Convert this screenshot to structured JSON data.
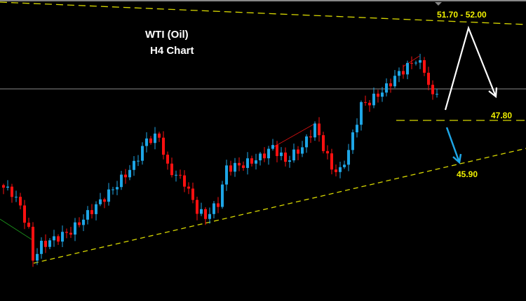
{
  "chart_data": {
    "type": "candlestick",
    "title": "WTI (Oil)",
    "subtitle": "H4 Chart",
    "up_color": "#1ea6e6",
    "down_color": "#ff1010",
    "background": "#000000",
    "grid": false,
    "price_path": {
      "candle_index": [
        0,
        2,
        4,
        6,
        7,
        9,
        16,
        21,
        26,
        31,
        34,
        37,
        39,
        43,
        46,
        48,
        51,
        53,
        57,
        61,
        64,
        67,
        71,
        74,
        78,
        80,
        82,
        85,
        87,
        91,
        93,
        96,
        98,
        100,
        102,
        103
      ],
      "close": [
        45.12,
        44.93,
        44.37,
        43.39,
        42.28,
        42.83,
        43.39,
        44.23,
        45.07,
        46.04,
        47.02,
        47.16,
        45.9,
        45.34,
        44.23,
        43.95,
        44.51,
        45.9,
        46.04,
        46.32,
        46.74,
        46.18,
        46.74,
        47.58,
        45.9,
        45.76,
        46.6,
        48.41,
        48.55,
        49.11,
        49.53,
        49.95,
        50.23,
        49.81,
        48.69,
        49.03
      ]
    },
    "current_price_line": 49.05,
    "levels": [
      {
        "label": "51.70 - 52.00",
        "type": "target-zone",
        "color": "#e6e600"
      },
      {
        "label": "47.80",
        "type": "support",
        "value": 47.8,
        "color": "#e6e600"
      },
      {
        "label": "45.90",
        "type": "trendline-support",
        "value": 45.9,
        "color": "#e6e600"
      }
    ],
    "annotations": [
      {
        "type": "arrow",
        "color": "#ffffff",
        "meaning": "rise toward 51.70 - 52.00 then fall"
      },
      {
        "type": "arrow",
        "color": "#1ea6e6",
        "meaning": "fall toward 45.90"
      }
    ]
  }
}
